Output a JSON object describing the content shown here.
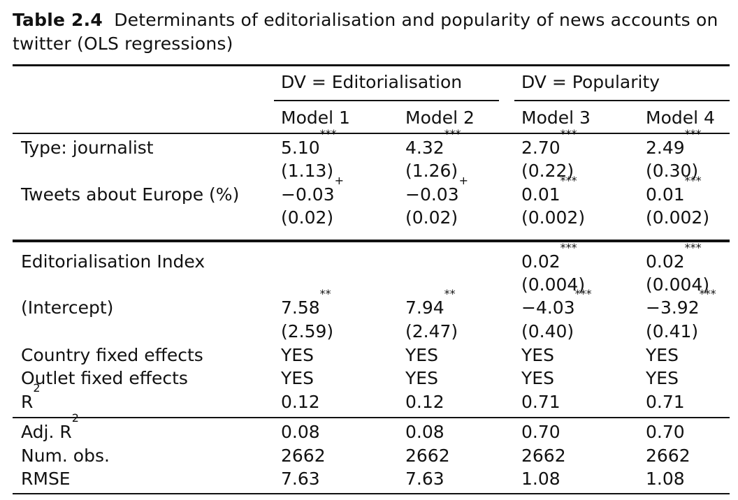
{
  "caption": {
    "label": "Table 2.4",
    "text": "Determinants of editorialisation and popularity of news accounts on twitter (OLS regressions)"
  },
  "header": {
    "dv_editorialisation": "DV = Editorialisation",
    "dv_popularity": "DV = Popularity",
    "models": [
      "Model 1",
      "Model 2",
      "Model 3",
      "Model 4"
    ]
  },
  "rows": {
    "journalist": {
      "label": "Type: journalist",
      "coef": [
        "5.10",
        "4.32",
        "2.70",
        "2.49"
      ],
      "sig": [
        "***",
        "***",
        "***",
        "***"
      ],
      "se": [
        "(1.13)",
        "(1.26)",
        "(0.22)",
        "(0.30)"
      ]
    },
    "europe": {
      "label": "Tweets about Europe (%)",
      "coef": [
        "−0.03",
        "−0.03",
        "0.01",
        "0.01"
      ],
      "sig": [
        "+",
        "+",
        "***",
        "***"
      ],
      "se": [
        "(0.02)",
        "(0.02)",
        "(0.002)",
        "(0.002)"
      ]
    },
    "edit_index": {
      "label": "Editorialisation Index",
      "coef": [
        "",
        "",
        "0.02",
        "0.02"
      ],
      "sig": [
        "",
        "",
        "***",
        "***"
      ],
      "se": [
        "",
        "",
        "(0.004)",
        "(0.004)"
      ]
    },
    "intercept": {
      "label": "(Intercept)",
      "coef": [
        "7.58",
        "7.94",
        "−4.03",
        "−3.92"
      ],
      "sig": [
        "**",
        "**",
        "***",
        "***"
      ],
      "se": [
        "(2.59)",
        "(2.47)",
        "(0.40)",
        "(0.41)"
      ]
    },
    "country_fe": {
      "label": "Country fixed effects",
      "values": [
        "YES",
        "YES",
        "YES",
        "YES"
      ]
    },
    "outlet_fe": {
      "label": "Outlet fixed effects",
      "values": [
        "YES",
        "YES",
        "YES",
        "YES"
      ]
    },
    "r2": {
      "label": "R",
      "label_sup": "2",
      "values": [
        "0.12",
        "0.12",
        "0.71",
        "0.71"
      ]
    },
    "adj_r2": {
      "label": "Adj. R",
      "label_sup": "2",
      "values": [
        "0.08",
        "0.08",
        "0.70",
        "0.70"
      ]
    },
    "num_obs": {
      "label": "Num. obs.",
      "values": [
        "2662",
        "2662",
        "2662",
        "2662"
      ]
    },
    "rmse": {
      "label": "RMSE",
      "values": [
        "7.63",
        "7.63",
        "1.08",
        "1.08"
      ]
    }
  }
}
